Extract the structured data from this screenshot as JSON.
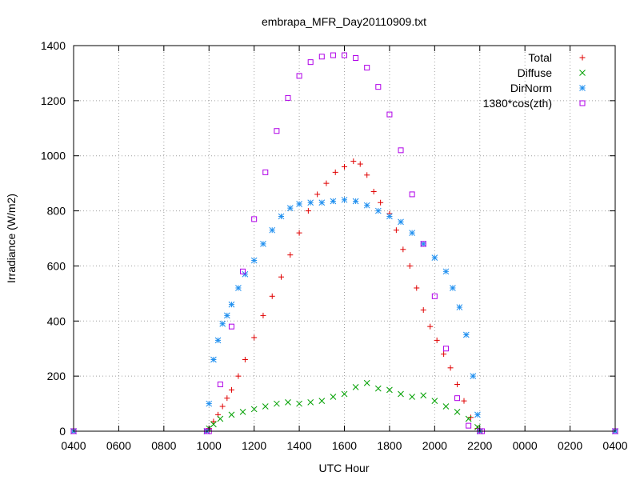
{
  "chart_data": {
    "type": "scatter",
    "title": "embrapa_MFR_Day20110909.txt",
    "xlabel": "UTC Hour",
    "ylabel": "Irradiance (W/m2)",
    "xlim": [
      4,
      28
    ],
    "ylim": [
      0,
      1400
    ],
    "xticks": [
      {
        "value": 4,
        "label": "0400"
      },
      {
        "value": 6,
        "label": "0600"
      },
      {
        "value": 8,
        "label": "0800"
      },
      {
        "value": 10,
        "label": "1000"
      },
      {
        "value": 12,
        "label": "1200"
      },
      {
        "value": 14,
        "label": "1400"
      },
      {
        "value": 16,
        "label": "1600"
      },
      {
        "value": 18,
        "label": "1800"
      },
      {
        "value": 20,
        "label": "2000"
      },
      {
        "value": 22,
        "label": "2200"
      },
      {
        "value": 24,
        "label": "0000"
      },
      {
        "value": 26,
        "label": "0200"
      },
      {
        "value": 28,
        "label": "0400"
      }
    ],
    "yticks": [
      0,
      200,
      400,
      600,
      800,
      1000,
      1200,
      1400
    ],
    "grid": true,
    "legend_position": "top-right",
    "series": [
      {
        "name": "Total",
        "marker": "plus",
        "color": "#e00000",
        "x": [
          4,
          9.9,
          10.0,
          10.2,
          10.4,
          10.6,
          10.8,
          11.0,
          11.3,
          11.6,
          12.0,
          12.4,
          12.8,
          13.2,
          13.6,
          14.0,
          14.4,
          14.8,
          15.2,
          15.6,
          16.0,
          16.4,
          16.7,
          17.0,
          17.3,
          17.6,
          18.0,
          18.3,
          18.6,
          18.9,
          19.2,
          19.5,
          19.8,
          20.1,
          20.4,
          20.7,
          21.0,
          21.3,
          21.6,
          21.9,
          22.0,
          28
        ],
        "y": [
          0,
          0,
          10,
          35,
          60,
          90,
          120,
          150,
          200,
          260,
          340,
          420,
          490,
          560,
          640,
          720,
          800,
          860,
          900,
          940,
          960,
          980,
          970,
          930,
          870,
          830,
          790,
          730,
          660,
          600,
          520,
          440,
          380,
          330,
          280,
          230,
          170,
          110,
          50,
          10,
          0,
          0
        ]
      },
      {
        "name": "Diffuse",
        "marker": "cross",
        "color": "#00a000",
        "x": [
          4,
          9.9,
          10.0,
          10.2,
          10.5,
          11.0,
          11.5,
          12.0,
          12.5,
          13.0,
          13.5,
          14.0,
          14.5,
          15.0,
          15.5,
          16.0,
          16.5,
          17.0,
          17.5,
          18.0,
          18.5,
          19.0,
          19.5,
          20.0,
          20.5,
          21.0,
          21.5,
          21.9,
          22.0,
          28
        ],
        "y": [
          0,
          0,
          10,
          25,
          45,
          60,
          70,
          80,
          90,
          100,
          105,
          100,
          105,
          110,
          125,
          135,
          160,
          175,
          155,
          150,
          135,
          125,
          130,
          110,
          90,
          70,
          45,
          15,
          0,
          0
        ]
      },
      {
        "name": "DirNorm",
        "marker": "star",
        "color": "#1f8fef",
        "x": [
          4,
          9.9,
          10.0,
          10.2,
          10.4,
          10.6,
          10.8,
          11.0,
          11.3,
          11.6,
          12.0,
          12.4,
          12.8,
          13.2,
          13.6,
          14.0,
          14.5,
          15.0,
          15.5,
          16.0,
          16.5,
          17.0,
          17.5,
          18.0,
          18.5,
          19.0,
          19.5,
          20.0,
          20.5,
          20.8,
          21.1,
          21.4,
          21.7,
          21.9,
          22.0,
          28
        ],
        "y": [
          0,
          0,
          100,
          260,
          330,
          390,
          420,
          460,
          520,
          570,
          620,
          680,
          730,
          780,
          810,
          825,
          830,
          830,
          835,
          840,
          835,
          820,
          800,
          780,
          760,
          720,
          680,
          630,
          580,
          520,
          450,
          350,
          200,
          60,
          0,
          0
        ]
      },
      {
        "name": "1380*cos(zth)",
        "marker": "square",
        "color": "#b000e8",
        "x": [
          4,
          9.9,
          10.0,
          10.5,
          11.0,
          11.5,
          12.0,
          12.5,
          13.0,
          13.5,
          14.0,
          14.5,
          15.0,
          15.5,
          16.0,
          16.5,
          17.0,
          17.5,
          18.0,
          18.5,
          19.0,
          19.5,
          20.0,
          20.5,
          21.0,
          21.5,
          22.0,
          22.1,
          28
        ],
        "y": [
          0,
          0,
          0,
          170,
          380,
          580,
          770,
          940,
          1090,
          1210,
          1290,
          1340,
          1360,
          1365,
          1365,
          1355,
          1320,
          1250,
          1150,
          1020,
          860,
          680,
          490,
          300,
          120,
          20,
          0,
          0,
          0
        ]
      }
    ]
  }
}
